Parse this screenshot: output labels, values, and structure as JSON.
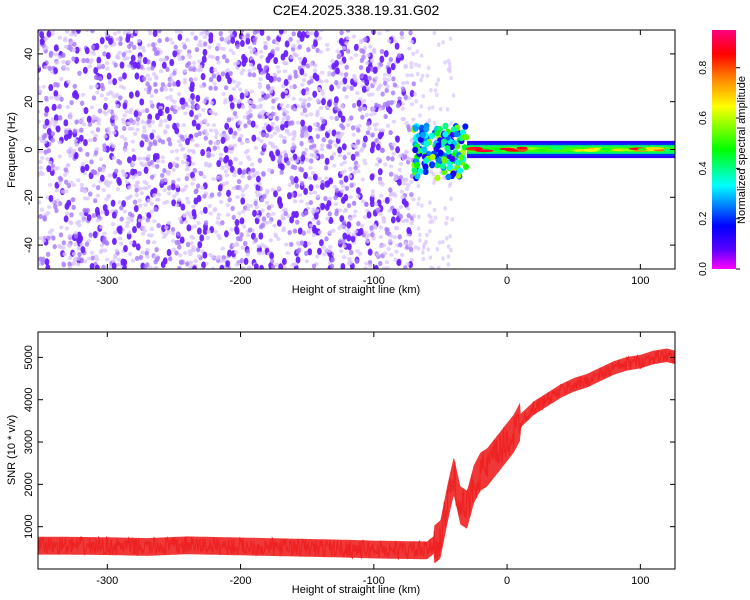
{
  "page": {
    "title": "C2E4.2025.338.19.31.G02"
  },
  "chart_data": [
    {
      "type": "heatmap",
      "panel": "spectrogram",
      "xlabel": "Height of straight line (km)",
      "ylabel": "Frequency (Hz)",
      "xlim": [
        -352,
        126
      ],
      "ylim": [
        -50,
        50
      ],
      "xticks": [
        -300,
        -200,
        -100,
        0,
        100
      ],
      "yticks": [
        -40,
        -20,
        0,
        20,
        40
      ],
      "colorbar": {
        "label": "Normalized spectral amplitude",
        "range": [
          0.0,
          0.95
        ],
        "ticks": [
          0.0,
          0.2,
          0.4,
          0.6,
          0.8
        ],
        "colormap": [
          "#ff00ff",
          "#5a00ff",
          "#0000ff",
          "#00ffff",
          "#00ff00",
          "#ffff00",
          "#ff8000",
          "#ff0000",
          "#ff0080"
        ]
      },
      "regions": [
        {
          "name": "noise",
          "x": [
            -352,
            -70
          ],
          "freq": [
            -50,
            50
          ],
          "amplitude": [
            0.0,
            0.1
          ]
        },
        {
          "name": "transition",
          "x": [
            -70,
            -30
          ],
          "freq": [
            -12,
            10
          ],
          "amplitude": [
            0.1,
            0.6
          ]
        },
        {
          "name": "carrier",
          "x": [
            -30,
            126
          ],
          "freq": [
            -3,
            3
          ],
          "amplitude": [
            0.4,
            0.9
          ]
        }
      ]
    },
    {
      "type": "line",
      "panel": "snr",
      "xlabel": "Height of straight line (km)",
      "ylabel": "SNR (10 * v/v)",
      "xlim": [
        -352,
        126
      ],
      "ylim": [
        0,
        5600
      ],
      "xticks": [
        -300,
        -200,
        -100,
        0,
        100
      ],
      "yticks": [
        1000,
        2000,
        3000,
        4000,
        5000
      ],
      "line_color": "#ee2222",
      "series": [
        {
          "x": [
            -352,
            -330,
            -300,
            -270,
            -240,
            -210,
            -180,
            -150,
            -120,
            -100,
            -80,
            -60,
            -50,
            -45,
            -40,
            -35,
            -30,
            -25,
            -20,
            -15,
            -10,
            -5,
            0,
            5,
            10,
            20,
            30,
            40,
            50,
            60,
            70,
            80,
            90,
            100,
            110,
            120,
            126
          ],
          "values": [
            550,
            550,
            540,
            520,
            560,
            540,
            520,
            500,
            480,
            460,
            450,
            440,
            700,
            1500,
            2200,
            1500,
            1400,
            2000,
            2300,
            2400,
            2600,
            2800,
            3000,
            3200,
            3500,
            3800,
            4000,
            4200,
            4350,
            4450,
            4600,
            4750,
            4850,
            4900,
            5000,
            5050,
            5000
          ]
        }
      ]
    }
  ]
}
